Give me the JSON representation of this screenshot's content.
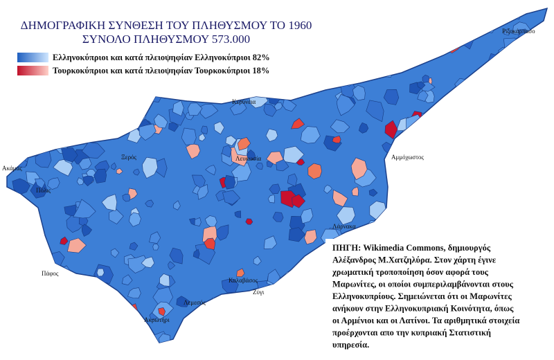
{
  "title": [
    "ΔΗΜΟΓΡΑΦΙΚΗ ΣΥΝΘΕΣΗ ΤΟΥ ΠΛΗΘΥΣΜΟΥ ΤΟ 1960",
    "ΣΥΝΟΛΟ ΠΛΗΘΥΣΜΟΥ 573.000"
  ],
  "legend": [
    {
      "label": "Ελληνοκύπριοι και κατά πλειοψηφίαν Ελληνοκύπριοι 82%"
    },
    {
      "label": "Τουρκοκύπριοι και κατά πλειοψηφίαν Τουρκοκύπριοι 18%"
    }
  ],
  "places": [
    {
      "label": "Ριζοκάρπασο"
    },
    {
      "label": "Κερύνεια"
    },
    {
      "label": "Λευκωσία"
    },
    {
      "label": "Αμμόχωστος"
    },
    {
      "label": "Λάρνακα"
    },
    {
      "label": "Ξερός"
    },
    {
      "label": "Ακάμας"
    },
    {
      "label": "Πόλις"
    },
    {
      "label": "Πάφος"
    },
    {
      "label": "Λεμεσός"
    },
    {
      "label": "Ακρωτήρι"
    },
    {
      "label": "Ζύγι"
    },
    {
      "label": "Καλαβάσος"
    }
  ],
  "source": [
    "ΠΗΓΗ: Wikimedia Commons, δημιουργός",
    "Αλέξανδρος Μ.Χατζηλύρα. Στον χάρτη έγινε",
    "χρωματική τροποποίηση όσον αφορά τους",
    "Μαρωνίτες, οι οποίοι συμπεριλαμβάνονται στους",
    "Ελληνοκυπρίους. Σημειώνεται ότι οι Μαρωνίτες",
    "ανήκουν στην Ελληνοκυπριακή  Κοινότητα, όπως",
    "οι Αρμένιοι και οι Λατίνοι. Τα αριθμητικά στοιχεία",
    "προέρχονται απο την κυπριακή Στατιστική",
    "υπηρεσία."
  ]
}
